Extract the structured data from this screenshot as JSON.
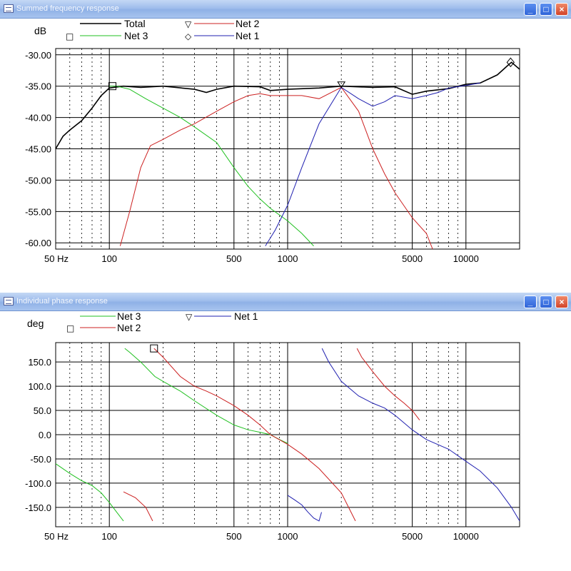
{
  "windows": [
    {
      "title": "Summed frequency response",
      "unit_label": "dB",
      "legend": [
        {
          "marker": "",
          "name": "Total",
          "color": "#000000"
        },
        {
          "marker": "▽",
          "name": "Net 2",
          "color": "#cc2020"
        },
        {
          "marker": "□",
          "name": "Net 3",
          "color": "#20c020"
        },
        {
          "marker": "◇",
          "name": "Net 1",
          "color": "#2020b0"
        }
      ]
    },
    {
      "title": "Individual phase response",
      "unit_label": "deg",
      "legend": [
        {
          "marker": "",
          "name": "Net 3",
          "color": "#20c020"
        },
        {
          "marker": "▽",
          "name": "Net 1",
          "color": "#2020b0"
        },
        {
          "marker": "□",
          "name": "Net 2",
          "color": "#cc2020"
        }
      ]
    }
  ],
  "colors": {
    "title_bar": "#9fbdec",
    "grid": "#000000",
    "plot_bg": "#ffffff"
  },
  "window_buttons": [
    "minimize",
    "maximize",
    "close"
  ],
  "chart_data": [
    {
      "type": "line",
      "xscale": "log",
      "xlim": [
        50,
        20000
      ],
      "ylim": [
        -61,
        -29
      ],
      "x_tick_labels": [
        {
          "f": 50,
          "label": "50 Hz"
        },
        {
          "f": 100,
          "label": "100"
        },
        {
          "f": 500,
          "label": "500"
        },
        {
          "f": 1000,
          "label": "1000"
        },
        {
          "f": 5000,
          "label": "5000"
        },
        {
          "f": 10000,
          "label": "10000"
        }
      ],
      "y_ticks": [
        -30,
        -35,
        -40,
        -45,
        -50,
        -55,
        -60
      ],
      "y_tick_labels": [
        "-30.00",
        "-35.00",
        "-40.00",
        "-45.00",
        "-50.00",
        "-55.00",
        "-60.00"
      ],
      "series": [
        {
          "name": "Total",
          "color": "#000000",
          "x": [
            50,
            55,
            60,
            70,
            80,
            90,
            100,
            120,
            150,
            200,
            300,
            350,
            400,
            500,
            700,
            800,
            1000,
            1500,
            2000,
            3000,
            4000,
            5000,
            6000,
            8000,
            10000,
            12000,
            15000,
            17000,
            18000,
            20000
          ],
          "y": [
            -45,
            -43,
            -42,
            -40.5,
            -38.5,
            -36.5,
            -35.3,
            -35,
            -35.2,
            -35,
            -35.5,
            -36,
            -35.5,
            -35,
            -35.1,
            -35.7,
            -35.5,
            -35.3,
            -35,
            -35.2,
            -35.1,
            -36.3,
            -35.8,
            -35.4,
            -34.7,
            -34.5,
            -33.2,
            -31.8,
            -31.2,
            -32.3
          ]
        },
        {
          "name": "Net 3",
          "color": "#20c020",
          "x": [
            100,
            110,
            130,
            160,
            200,
            250,
            300,
            400,
            500,
            600,
            700,
            800,
            1000,
            1200,
            1400
          ],
          "y": [
            -35,
            -35,
            -35.5,
            -37,
            -38.5,
            -40,
            -41.5,
            -44,
            -48,
            -51,
            -53,
            -54.5,
            -56.5,
            -58.5,
            -60.5
          ]
        },
        {
          "name": "Net 2",
          "color": "#cc2020",
          "x": [
            115,
            130,
            150,
            170,
            200,
            250,
            300,
            400,
            500,
            600,
            700,
            800,
            1000,
            1200,
            1500,
            2000,
            2500,
            3000,
            3500,
            4000,
            5000,
            6000,
            6500
          ],
          "y": [
            -60.5,
            -55,
            -48,
            -44.5,
            -43.5,
            -42,
            -41,
            -39,
            -37.5,
            -36.5,
            -36.2,
            -36.5,
            -36.5,
            -36.5,
            -37,
            -35.2,
            -39,
            -45,
            -49,
            -52,
            -56,
            -58.5,
            -61
          ]
        },
        {
          "name": "Net 1",
          "color": "#2020b0",
          "x": [
            750,
            850,
            1000,
            1200,
            1500,
            2000,
            2500,
            3000,
            3500,
            4000,
            5000,
            6000,
            7000,
            8000,
            10000,
            12000
          ],
          "y": [
            -60.5,
            -58,
            -54,
            -48,
            -41,
            -35.2,
            -37,
            -38.2,
            -37.5,
            -36.5,
            -37,
            -36.5,
            -36,
            -35.3,
            -34.9,
            -34.5
          ]
        }
      ],
      "markers": [
        {
          "series": "Net 3",
          "shape": "square",
          "x": 104,
          "y": -35
        },
        {
          "series": "Net 2",
          "shape": "triangle-down",
          "x": 2000,
          "y": -35
        },
        {
          "series": "Net 1",
          "shape": "diamond",
          "x": 17800,
          "y": -31.2
        }
      ]
    },
    {
      "type": "line",
      "xscale": "log",
      "xlim": [
        50,
        20000
      ],
      "ylim": [
        -190,
        190
      ],
      "x_tick_labels": [
        {
          "f": 50,
          "label": "50 Hz"
        },
        {
          "f": 100,
          "label": "100"
        },
        {
          "f": 500,
          "label": "500"
        },
        {
          "f": 1000,
          "label": "1000"
        },
        {
          "f": 5000,
          "label": "5000"
        },
        {
          "f": 10000,
          "label": "10000"
        }
      ],
      "y_ticks": [
        150,
        100,
        50,
        0,
        -50,
        -100,
        -150
      ],
      "y_tick_labels": [
        "150.0",
        "100.0",
        "50.0",
        "0.0",
        "-50.0",
        "-100.0",
        "-150.0"
      ],
      "series": [
        {
          "name": "Net 3",
          "color": "#20c020",
          "segments": [
            {
              "x": [
                50,
                60,
                70,
                80,
                90,
                100,
                110,
                120
              ],
              "y": [
                -60,
                -80,
                -95,
                -105,
                -120,
                -140,
                -160,
                -178
              ]
            },
            {
              "x": [
                122,
                130,
                150,
                180,
                200,
                250,
                300,
                400,
                500,
                600,
                700,
                800,
                900,
                1000
              ],
              "y": [
                178,
                170,
                150,
                120,
                110,
                90,
                70,
                40,
                20,
                10,
                5,
                0,
                -10,
                -18
              ]
            }
          ]
        },
        {
          "name": "Net 2",
          "color": "#cc2020",
          "segments": [
            {
              "x": [
                120,
                140,
                160,
                175
              ],
              "y": [
                -118,
                -130,
                -150,
                -178
              ]
            },
            {
              "x": [
                178,
                200,
                250,
                300,
                350,
                400,
                500,
                600,
                700,
                800,
                1000,
                1200,
                1500,
                2000,
                2400
              ],
              "y": [
                178,
                160,
                120,
                100,
                90,
                80,
                60,
                40,
                20,
                0,
                -20,
                -40,
                -70,
                -120,
                -178
              ]
            },
            {
              "x": [
                2450,
                2600,
                3000,
                3500,
                4000,
                4500,
                5000,
                5500
              ],
              "y": [
                178,
                160,
                130,
                100,
                80,
                65,
                50,
                30
              ]
            }
          ]
        },
        {
          "name": "Net 1",
          "color": "#2020b0",
          "segments": [
            {
              "x": [
                1000,
                1100,
                1200,
                1300,
                1400,
                1500,
                1550
              ],
              "y": [
                -125,
                -135,
                -145,
                -160,
                -172,
                -178,
                -160
              ]
            },
            {
              "x": [
                1560,
                1700,
                2000,
                2500,
                3000,
                3500,
                4000,
                5000,
                6000,
                8000,
                10000,
                12000,
                15000,
                18000,
                20000
              ],
              "y": [
                178,
                150,
                110,
                80,
                65,
                55,
                40,
                10,
                -10,
                -30,
                -55,
                -75,
                -110,
                -150,
                -178
              ]
            }
          ]
        }
      ],
      "markers": [
        {
          "series": "Net 2",
          "shape": "square",
          "x": 178,
          "y": 178
        }
      ]
    }
  ]
}
